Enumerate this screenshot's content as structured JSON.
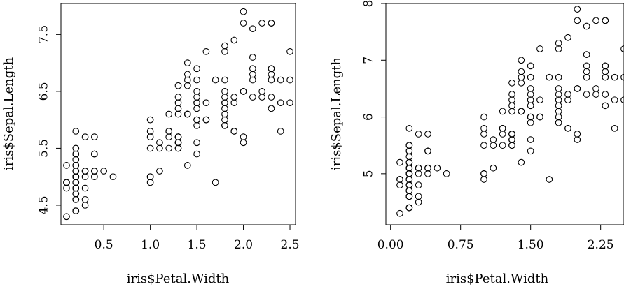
{
  "chart_data": [
    {
      "type": "scatter",
      "title": "",
      "xlabel": "iris$Petal.Width",
      "ylabel": "iris$Sepal.Length",
      "xlim": [
        0.04,
        2.56
      ],
      "ylim": [
        4.156,
        8.044
      ],
      "xticks": [
        0.5,
        1.0,
        1.5,
        2.0,
        2.5
      ],
      "xtick_labels": [
        "0.5",
        "1.0",
        "1.5",
        "2.0",
        "2.5"
      ],
      "yticks": [
        4.5,
        5.5,
        6.5,
        7.5
      ],
      "ytick_labels": [
        "4.5",
        "5.5",
        "6.5",
        "7.5"
      ],
      "grid": false,
      "points": "setosa:[0.1,4.3],[0.1,4.8],[0.1,4.9],[0.1,5.2],[0.2,4.4],[0.2,4.6],[0.2,4.7],[0.2,4.8],[0.2,4.9],[0.2,5.0],[0.2,5.1],[0.2,5.2],[0.2,5.3],[0.2,5.4],[0.2,5.5],[0.2,5.8],[0.3,4.5],[0.3,4.8],[0.3,5.0],[0.3,5.1],[0.3,5.7],[0.4,5.0],[0.4,5.1],[0.4,5.4],[0.4,5.7],[0.5,5.1],[0.6,5.0]"
    },
    {
      "type": "scatter",
      "title": "",
      "xlabel": "iris$Petal.Width",
      "ylabel": "iris$Sepal.Length",
      "xlim": [
        -0.05,
        2.5
      ],
      "ylim": [
        4.1,
        8.0
      ],
      "xticks": [
        0.0,
        0.75,
        1.5,
        2.25
      ],
      "xtick_labels": [
        "0.00",
        "0.75",
        "1.50",
        "2.25"
      ],
      "yticks": [
        5,
        6,
        7,
        8
      ],
      "ytick_labels": [
        "5",
        "6",
        "7",
        "8"
      ],
      "grid": false
    }
  ],
  "iris": {
    "petal_width": [
      0.2,
      0.2,
      0.2,
      0.2,
      0.2,
      0.4,
      0.3,
      0.2,
      0.2,
      0.1,
      0.2,
      0.2,
      0.1,
      0.1,
      0.2,
      0.4,
      0.4,
      0.3,
      0.3,
      0.3,
      0.2,
      0.4,
      0.2,
      0.5,
      0.2,
      0.2,
      0.4,
      0.2,
      0.2,
      0.2,
      0.2,
      0.4,
      0.1,
      0.2,
      0.2,
      0.2,
      0.2,
      0.1,
      0.2,
      0.2,
      0.3,
      0.3,
      0.2,
      0.6,
      0.4,
      0.3,
      0.2,
      0.2,
      0.2,
      0.2,
      1.4,
      1.5,
      1.5,
      1.3,
      1.5,
      1.3,
      1.6,
      1.0,
      1.3,
      1.4,
      1.0,
      1.5,
      1.0,
      1.4,
      1.3,
      1.4,
      1.5,
      1.0,
      1.5,
      1.1,
      1.8,
      1.3,
      1.5,
      1.2,
      1.3,
      1.4,
      1.4,
      1.7,
      1.5,
      1.0,
      1.1,
      1.0,
      1.2,
      1.6,
      1.5,
      1.6,
      1.5,
      1.3,
      1.3,
      1.3,
      1.2,
      1.4,
      1.2,
      1.0,
      1.3,
      1.2,
      1.3,
      1.3,
      1.1,
      1.3,
      2.5,
      1.9,
      2.1,
      1.8,
      2.2,
      2.1,
      1.7,
      1.8,
      1.8,
      2.5,
      2.0,
      1.9,
      2.1,
      2.0,
      2.4,
      2.3,
      1.8,
      2.2,
      2.3,
      1.5,
      2.3,
      2.0,
      2.0,
      1.8,
      2.1,
      1.8,
      1.8,
      1.8,
      2.1,
      1.6,
      1.9,
      2.0,
      2.2,
      1.5,
      1.4,
      2.3,
      2.4,
      1.8,
      1.8,
      2.1,
      2.4,
      2.3,
      1.9,
      2.3,
      2.5,
      2.3,
      1.9,
      2.0,
      2.3,
      1.8
    ],
    "sepal_length": [
      5.1,
      4.9,
      4.7,
      4.6,
      5.0,
      5.4,
      4.6,
      5.0,
      4.4,
      4.9,
      5.4,
      4.8,
      4.8,
      4.3,
      5.8,
      5.7,
      5.4,
      5.1,
      5.7,
      5.1,
      5.4,
      5.1,
      4.6,
      5.1,
      4.8,
      5.0,
      5.0,
      5.2,
      5.2,
      4.7,
      4.8,
      5.4,
      5.2,
      5.5,
      4.9,
      5.0,
      5.5,
      4.9,
      4.4,
      5.1,
      5.0,
      4.5,
      4.4,
      5.0,
      5.1,
      4.8,
      5.1,
      4.6,
      5.3,
      5.0,
      7.0,
      6.4,
      6.9,
      5.5,
      6.5,
      5.7,
      6.3,
      4.9,
      6.6,
      5.2,
      5.0,
      5.9,
      6.0,
      6.1,
      5.6,
      6.7,
      5.6,
      5.8,
      6.2,
      5.6,
      5.9,
      6.1,
      6.3,
      6.1,
      6.4,
      6.6,
      6.8,
      6.7,
      6.0,
      5.7,
      5.5,
      5.5,
      5.8,
      6.0,
      5.4,
      6.0,
      6.7,
      6.3,
      5.6,
      5.5,
      5.5,
      6.1,
      5.8,
      5.0,
      5.6,
      5.7,
      5.7,
      6.2,
      5.1,
      5.7,
      6.3,
      5.8,
      7.1,
      6.3,
      6.5,
      7.6,
      4.9,
      7.3,
      6.7,
      7.2,
      6.5,
      6.4,
      6.8,
      5.7,
      5.8,
      6.4,
      6.5,
      7.7,
      7.7,
      6.0,
      6.9,
      5.6,
      7.7,
      6.3,
      6.7,
      7.2,
      6.2,
      6.1,
      6.4,
      7.2,
      7.4,
      7.9,
      6.4,
      6.3,
      6.1,
      7.7,
      6.3,
      6.4,
      6.0,
      6.9,
      6.7,
      6.9,
      5.8,
      6.8,
      6.7,
      6.7,
      6.3,
      6.5,
      6.2,
      5.9
    ]
  }
}
